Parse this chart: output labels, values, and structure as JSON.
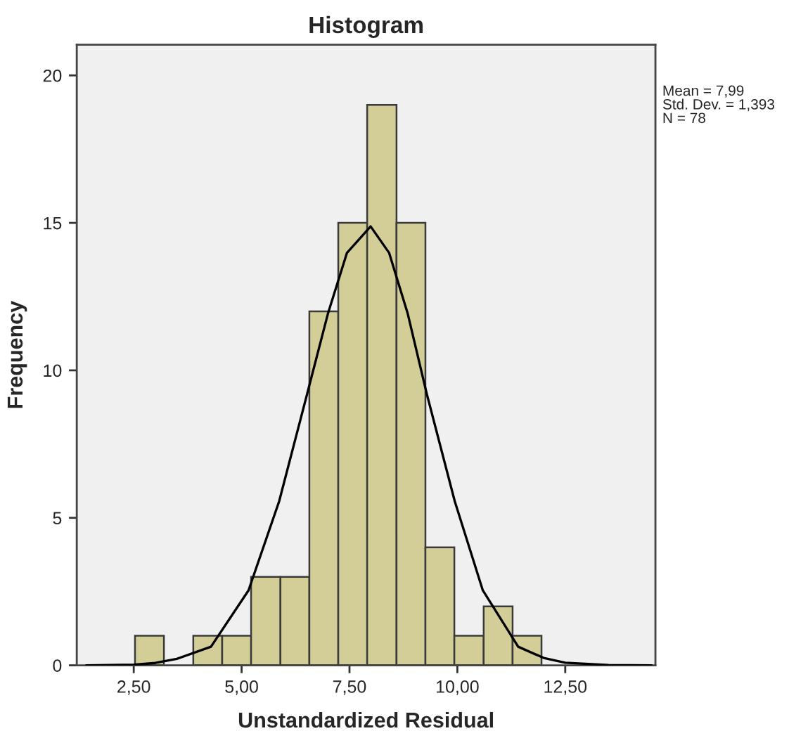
{
  "chart_data": {
    "type": "histogram",
    "title": "Histogram",
    "xlabel": "Unstandardized Residual",
    "ylabel": "Frequency",
    "bins": [
      2.53,
      3.2,
      3.88,
      4.55,
      5.22,
      5.9,
      6.57,
      7.24,
      7.91,
      8.59,
      9.26,
      9.93,
      10.61,
      11.28,
      11.95
    ],
    "values": [
      1,
      0,
      1,
      1,
      3,
      3,
      12,
      15,
      19,
      15,
      4,
      1,
      2,
      1
    ],
    "color": "#d3ce97",
    "series": [
      {
        "type": "line",
        "color": "#000000",
        "x": [
          1.4,
          2.5,
          3.0,
          3.5,
          4.29,
          5.16,
          5.87,
          6.52,
          7.0,
          7.44,
          7.99,
          8.42,
          8.85,
          9.29,
          9.94,
          10.59,
          11.41,
          12.0,
          12.5,
          13.5,
          14.5
        ],
        "values": [
          0,
          0.02,
          0.08,
          0.22,
          0.63,
          2.54,
          5.56,
          9.21,
          11.92,
          13.98,
          14.88,
          13.98,
          11.92,
          9.21,
          5.56,
          2.54,
          0.63,
          0.25,
          0.09,
          0.01,
          0
        ]
      }
    ],
    "xlim": [
      1.18,
      14.59
    ],
    "ylim": [
      0,
      21.04
    ],
    "xticks": [
      {
        "value": 2.5,
        "label": "2,50"
      },
      {
        "value": 5,
        "label": "5,00"
      },
      {
        "value": 7.5,
        "label": "7,50"
      },
      {
        "value": 10,
        "label": "10,00"
      },
      {
        "value": 12.5,
        "label": "12,50"
      }
    ],
    "yticks": [
      0,
      5,
      10,
      15,
      20
    ],
    "grid": false,
    "legend": false,
    "annotations": [
      "Mean = 7,99\nStd. Dev. = 1,393\nN = 78"
    ]
  }
}
